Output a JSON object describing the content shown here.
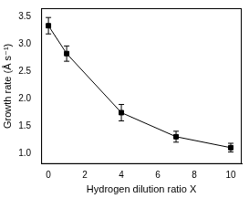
{
  "chart_data": {
    "type": "line",
    "x_label": "Hydrogen dilution ratio X",
    "y_label": "Growth rate (Å s⁻¹)",
    "x": [
      0,
      1,
      4,
      7,
      10
    ],
    "values": [
      3.33,
      2.82,
      1.74,
      1.3,
      1.1
    ],
    "errors": [
      0.15,
      0.14,
      0.15,
      0.1,
      0.08
    ],
    "color": "#000000",
    "marker": "square",
    "line_style": "solid",
    "xlim": [
      -0.4,
      10.6
    ],
    "xticks": [
      0,
      2,
      4,
      6,
      8,
      10
    ],
    "ylim": [
      0.8,
      3.65
    ],
    "yticks": [
      {
        "value": 1,
        "label": "1.0"
      },
      1.5,
      {
        "value": 2,
        "label": "2.0"
      },
      2.5,
      {
        "value": 3,
        "label": "3.0"
      },
      3.5
    ],
    "grid": false
  }
}
